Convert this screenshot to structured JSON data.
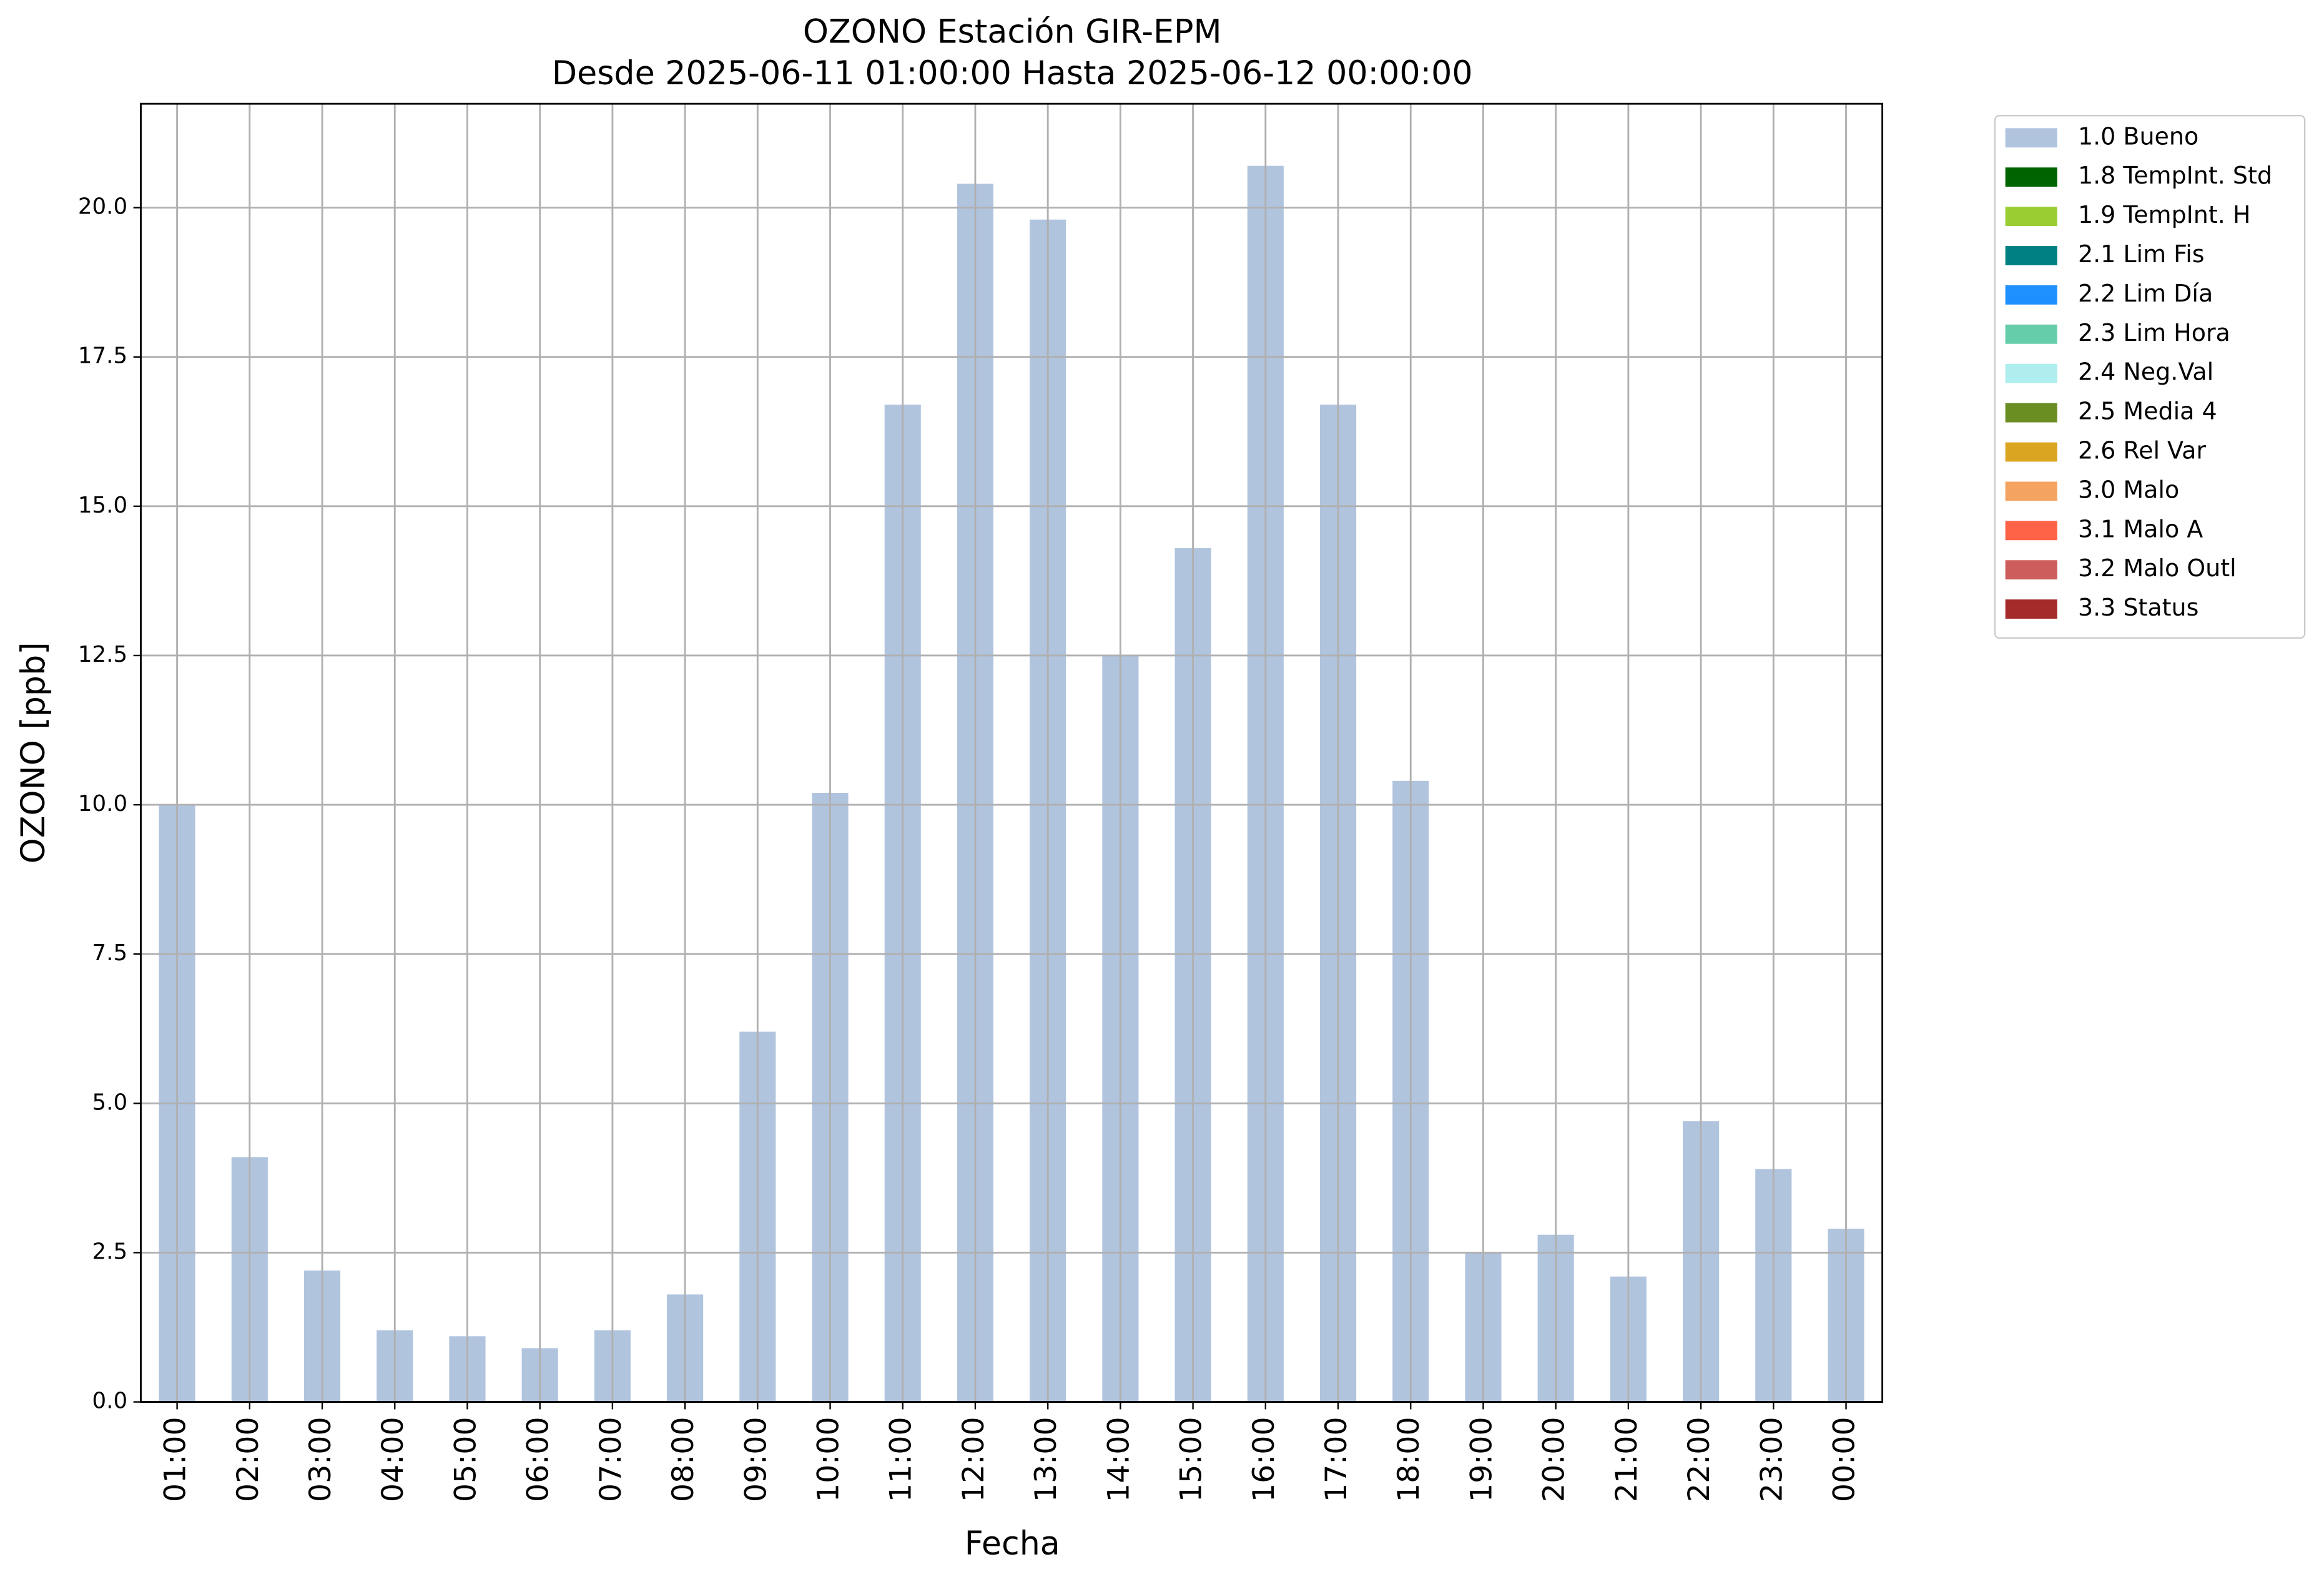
{
  "chart_data": {
    "type": "stacked-bar",
    "title": "OZONO Estación GIR-EPM",
    "subtitle": "Desde 2025-06-11 01:00:00 Hasta 2025-06-12 00:00:00",
    "x_label": "Fecha",
    "y_label": "OZONO [ppb]",
    "categories": [
      "01:00",
      "02:00",
      "03:00",
      "04:00",
      "05:00",
      "06:00",
      "07:00",
      "08:00",
      "09:00",
      "10:00",
      "11:00",
      "12:00",
      "13:00",
      "14:00",
      "15:00",
      "16:00",
      "17:00",
      "18:00",
      "19:00",
      "20:00",
      "21:00",
      "22:00",
      "23:00",
      "00:00"
    ],
    "series": [
      {
        "name": "1.0 Bueno",
        "color": "#b0c4de",
        "values": [
          10.0,
          4.1,
          2.2,
          1.2,
          1.1,
          0.9,
          1.2,
          1.8,
          6.2,
          10.2,
          16.7,
          20.4,
          19.8,
          12.5,
          14.3,
          20.7,
          16.7,
          10.4,
          2.5,
          2.8,
          2.1,
          4.7,
          3.9,
          2.9
        ]
      },
      {
        "name": "1.8 TempInt. Std",
        "color": "#006400",
        "values": [
          0,
          0,
          0,
          0,
          0,
          0,
          0,
          0,
          0,
          0,
          0,
          0,
          0,
          0,
          0,
          0,
          0,
          0,
          0,
          0,
          0,
          0,
          0,
          0
        ]
      },
      {
        "name": "1.9 TempInt. H",
        "color": "#9acd32",
        "values": [
          0,
          0,
          0,
          0,
          0,
          0,
          0,
          0,
          0,
          0,
          0,
          0,
          0,
          0,
          0,
          0,
          0,
          0,
          0,
          0,
          0,
          0,
          0,
          0
        ]
      },
      {
        "name": "2.1 Lim Fis",
        "color": "#008080",
        "values": [
          0,
          0,
          0,
          0,
          0,
          0,
          0,
          0,
          0,
          0,
          0,
          0,
          0,
          0,
          0,
          0,
          0,
          0,
          0,
          0,
          0,
          0,
          0,
          0
        ]
      },
      {
        "name": "2.2 Lim Día",
        "color": "#1e90ff",
        "values": [
          0,
          0,
          0,
          0,
          0,
          0,
          0,
          0,
          0,
          0,
          0,
          0,
          0,
          0,
          0,
          0,
          0,
          0,
          0,
          0,
          0,
          0,
          0,
          0
        ]
      },
      {
        "name": "2.3 Lim Hora",
        "color": "#66cdaa",
        "values": [
          0,
          0,
          0,
          0,
          0,
          0,
          0,
          0,
          0,
          0,
          0,
          0,
          0,
          0,
          0,
          0,
          0,
          0,
          0,
          0,
          0,
          0,
          0,
          0
        ]
      },
      {
        "name": "2.4 Neg.Val",
        "color": "#afeeee",
        "values": [
          0,
          0,
          0,
          0,
          0,
          0,
          0,
          0,
          0,
          0,
          0,
          0,
          0,
          0,
          0,
          0,
          0,
          0,
          0,
          0,
          0,
          0,
          0,
          0
        ]
      },
      {
        "name": "2.5 Media 4",
        "color": "#6b8e23",
        "values": [
          0,
          0,
          0,
          0,
          0,
          0,
          0,
          0,
          0,
          0,
          0,
          0,
          0,
          0,
          0,
          0,
          0,
          0,
          0,
          0,
          0,
          0,
          0,
          0
        ]
      },
      {
        "name": "2.6 Rel Var",
        "color": "#daa520",
        "values": [
          0,
          0,
          0,
          0,
          0,
          0,
          0,
          0,
          0,
          0,
          0,
          0,
          0,
          0,
          0,
          0,
          0,
          0,
          0,
          0,
          0,
          0,
          0,
          0
        ]
      },
      {
        "name": "3.0 Malo",
        "color": "#f4a460",
        "values": [
          0,
          0,
          0,
          0,
          0,
          0,
          0,
          0,
          0,
          0,
          0,
          0,
          0,
          0,
          0,
          0,
          0,
          0,
          0,
          0,
          0,
          0,
          0,
          0
        ]
      },
      {
        "name": "3.1 Malo A",
        "color": "#ff6347",
        "values": [
          0,
          0,
          0,
          0,
          0,
          0,
          0,
          0,
          0,
          0,
          0,
          0,
          0,
          0,
          0,
          0,
          0,
          0,
          0,
          0,
          0,
          0,
          0,
          0
        ]
      },
      {
        "name": "3.2 Malo Outl",
        "color": "#cd5c5c",
        "values": [
          0,
          0,
          0,
          0,
          0,
          0,
          0,
          0,
          0,
          0,
          0,
          0,
          0,
          0,
          0,
          0,
          0,
          0,
          0,
          0,
          0,
          0,
          0,
          0
        ]
      },
      {
        "name": "3.3 Status",
        "color": "#a52a2a",
        "values": [
          0,
          0,
          0,
          0,
          0,
          0,
          0,
          0,
          0,
          0,
          0,
          0,
          0,
          0,
          0,
          0,
          0,
          0,
          0,
          0,
          0,
          0,
          0,
          0
        ]
      }
    ],
    "ylim": [
      0,
      21.74
    ],
    "yticks": [
      {
        "value": 0,
        "label": "0.0"
      },
      {
        "value": 2.5,
        "label": "2.5"
      },
      {
        "value": 5,
        "label": "5.0"
      },
      {
        "value": 7.5,
        "label": "7.5"
      },
      {
        "value": 10,
        "label": "10.0"
      },
      {
        "value": 12.5,
        "label": "12.5"
      },
      {
        "value": 15,
        "label": "15.0"
      },
      {
        "value": 17.5,
        "label": "17.5"
      },
      {
        "value": 20,
        "label": "20.0"
      }
    ],
    "grid": true,
    "legend": "outside-upper-right"
  }
}
